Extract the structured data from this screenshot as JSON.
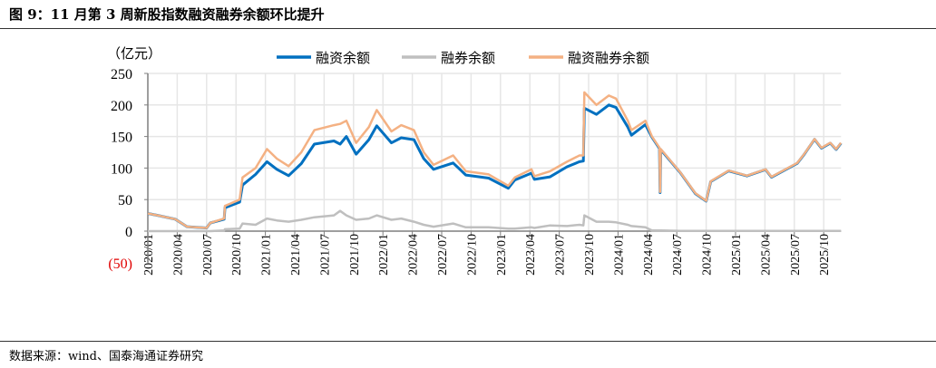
{
  "title": "图 9：11 月第 3 周新股指数融资融券余额环比提升",
  "source": "数据来源：wind、国泰海通证券研究",
  "chart_data": {
    "type": "line",
    "title": "图 9：11 月第 3 周新股指数融资融券余额环比提升",
    "ylabel": "（亿元）",
    "xlabel": "",
    "ylim": [
      -50,
      250
    ],
    "yticks": [
      250,
      200,
      150,
      100,
      50,
      0,
      -50
    ],
    "ytick_labels": [
      "250",
      "200",
      "150",
      "100",
      "50",
      "0",
      "(50)"
    ],
    "negative_label_color": "#e00000",
    "xlim": [
      "2020-01-01",
      "2025-11-24"
    ],
    "xtick_labels": [
      "2020/01",
      "2020/04",
      "2020/07",
      "2020/10",
      "2021/01",
      "2021/04",
      "2021/07",
      "2021/10",
      "2022/01",
      "2022/04",
      "2022/07",
      "2022/10",
      "2023/01",
      "2023/04",
      "2023/07",
      "2023/10",
      "2024/01",
      "2024/04",
      "2024/07",
      "2024/10",
      "2025/01",
      "2025/04",
      "2025/07",
      "2025/10"
    ],
    "grid": true,
    "legend_position": "top",
    "dates": [
      "2020-01-01",
      "2020-02-01",
      "2020-03-25",
      "2020-05-01",
      "2020-07-01",
      "2020-07-12",
      "2020-08-25",
      "2020-08-27",
      "2020-10-12",
      "2020-10-21",
      "2020-12-01",
      "2021-01-06",
      "2021-02-06",
      "2021-03-12",
      "2021-04-21",
      "2021-06-01",
      "2021-08-01",
      "2021-08-20",
      "2021-09-09",
      "2021-10-09",
      "2021-11-18",
      "2021-12-12",
      "2022-01-27",
      "2022-02-27",
      "2022-04-06",
      "2022-05-06",
      "2022-06-06",
      "2022-08-06",
      "2022-09-15",
      "2022-11-25",
      "2023-01-25",
      "2023-02-15",
      "2023-04-06",
      "2023-04-15",
      "2023-06-03",
      "2023-07-25",
      "2023-09-03",
      "2023-09-15",
      "2023-09-18",
      "2023-10-25",
      "2023-12-03",
      "2023-12-25",
      "2024-02-01",
      "2024-02-12",
      "2024-03-25",
      "2024-04-15",
      "2024-05-08",
      "2024-05-10",
      "2024-05-12",
      "2024-07-12",
      "2024-08-28",
      "2024-10-01",
      "2024-10-15",
      "2024-12-10",
      "2025-02-06",
      "2025-04-03",
      "2025-04-21",
      "2025-07-10",
      "2025-08-01",
      "2025-09-03",
      "2025-09-24",
      "2025-10-21",
      "2025-11-09",
      "2025-11-24"
    ],
    "series": [
      {
        "name": "融资余额",
        "color": "#0070c0",
        "values": [
          28,
          25,
          19,
          7,
          5,
          13,
          19,
          37,
          46,
          73,
          90,
          110,
          98,
          88,
          107,
          138,
          143,
          138,
          150,
          122,
          145,
          167,
          140,
          148,
          145,
          115,
          98,
          108,
          89,
          84,
          68,
          81,
          92,
          82,
          86,
          102,
          110,
          111,
          195,
          185,
          200,
          196,
          165,
          152,
          169,
          149,
          131,
          61,
          129,
          92.5,
          59.5,
          47.5,
          78.5,
          95.5,
          87.5,
          97.5,
          85.5,
          107.5,
          121.5,
          145.5,
          131.5,
          139.5,
          129.5,
          139.5
        ]
      },
      {
        "name": "融券余额",
        "color": "#bfbfbf",
        "values": [
          0,
          0,
          0,
          0,
          0,
          0,
          1,
          3,
          4,
          12,
          10,
          20,
          17,
          15,
          18,
          22,
          25,
          32,
          25,
          18,
          20,
          25,
          18,
          20,
          15,
          10,
          7,
          12,
          6,
          6,
          4,
          4,
          6,
          5,
          9,
          8,
          10,
          9,
          25,
          15,
          15,
          14,
          10,
          8,
          6,
          1,
          1,
          1,
          1,
          0.5,
          0.5,
          0.5,
          0.5,
          0.5,
          0.5,
          0.5,
          0.5,
          0.5,
          0.5,
          0.5,
          0.5,
          0.5,
          0.5,
          0.5
        ]
      },
      {
        "name": "融资融券余额",
        "color": "#f4b183",
        "values": [
          28,
          25,
          19,
          7,
          5,
          13,
          20,
          40,
          50,
          85,
          100,
          130,
          115,
          103,
          125,
          160,
          168,
          170,
          175,
          140,
          165,
          192,
          158,
          168,
          160,
          125,
          105,
          120,
          95,
          90,
          72,
          85,
          98,
          87,
          95,
          110,
          120,
          120,
          220,
          200,
          215,
          210,
          175,
          160,
          175,
          150,
          132,
          62,
          130,
          93,
          60,
          48,
          79,
          96,
          88,
          98,
          86,
          108,
          122,
          146,
          132,
          140,
          130,
          140
        ]
      }
    ]
  }
}
